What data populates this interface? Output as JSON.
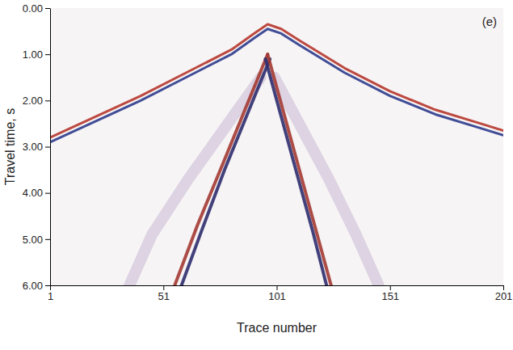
{
  "chart_data": {
    "type": "line",
    "annotation": "(e)",
    "x_label": "Trace number",
    "y_label": "Travel time, s",
    "xlim": [
      1,
      201
    ],
    "xticks": [
      1,
      51,
      101,
      151,
      201
    ],
    "ylim": [
      0,
      6
    ],
    "yticks": [
      {
        "value": 0,
        "label": "0.00"
      },
      {
        "value": 1,
        "label": "1.00"
      },
      {
        "value": 2,
        "label": "2.00"
      },
      {
        "value": 3,
        "label": "3.00"
      },
      {
        "value": 4,
        "label": "4.00"
      },
      {
        "value": 5,
        "label": "5.00"
      },
      {
        "value": 6,
        "label": "6.00"
      }
    ],
    "grid": false,
    "series": [
      {
        "color": "#b5362c",
        "x": [
          1,
          21,
          41,
          61,
          81,
          91,
          97,
          103,
          111,
          131,
          151,
          171,
          191,
          201
        ],
        "values": [
          2.8,
          2.35,
          1.9,
          1.4,
          0.9,
          0.55,
          0.35,
          0.45,
          0.7,
          1.3,
          1.8,
          2.2,
          2.5,
          2.65
        ]
      },
      {
        "color": "#2b3b8c",
        "x": [
          1,
          21,
          41,
          61,
          81,
          91,
          97,
          103,
          111,
          131,
          151,
          171,
          191,
          201
        ],
        "values": [
          2.9,
          2.45,
          2.0,
          1.5,
          1.0,
          0.65,
          0.45,
          0.55,
          0.8,
          1.4,
          1.9,
          2.3,
          2.6,
          2.75
        ]
      },
      {
        "color": "#d9cfe0",
        "x": [
          94,
          78,
          62,
          46,
          36
        ],
        "values": [
          1.5,
          2.6,
          3.7,
          4.9,
          6.0
        ]
      },
      {
        "color": "#d9cfe0",
        "x": [
          100,
          112,
          124,
          136,
          146
        ],
        "values": [
          1.5,
          2.6,
          3.7,
          4.9,
          6.0
        ]
      },
      {
        "color": "#a33a33",
        "x": [
          97,
          87,
          77,
          66,
          56
        ],
        "values": [
          1.0,
          2.2,
          3.4,
          4.7,
          6.0
        ]
      },
      {
        "color": "#2e2e6e",
        "x": [
          98,
          88,
          78,
          68,
          59
        ],
        "values": [
          1.1,
          2.3,
          3.5,
          4.8,
          6.0
        ]
      },
      {
        "color": "#a33a33",
        "x": [
          97,
          104,
          111,
          118,
          125
        ],
        "values": [
          1.0,
          2.25,
          3.5,
          4.75,
          6.0
        ]
      },
      {
        "color": "#2e2e6e",
        "x": [
          96,
          103,
          110,
          117,
          123
        ],
        "values": [
          1.1,
          2.35,
          3.6,
          4.85,
          6.0
        ]
      }
    ]
  }
}
